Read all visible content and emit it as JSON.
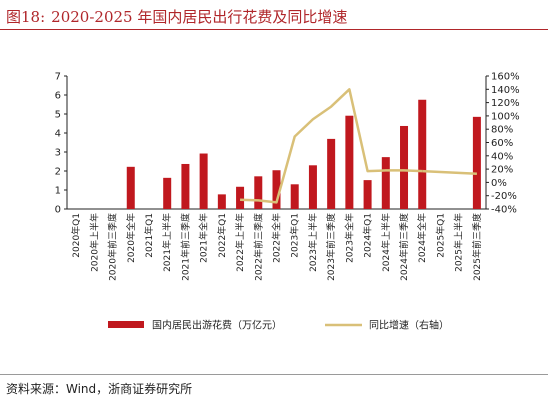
{
  "header": {
    "figure_label": "图18:",
    "title": "2020-2025 年国内居民出行花费及同比增速"
  },
  "source": "资料来源：Wind，浙商证券研究所",
  "chart_data": {
    "type": "bar",
    "categories": [
      "2020年Q1",
      "2020年上半年",
      "2020年前三季度",
      "2020年全年",
      "2021年Q1",
      "2021年上半年",
      "2021年前三季度",
      "2021年全年",
      "2022年Q1",
      "2022年上半年",
      "2022年前三季度",
      "2022年全年",
      "2023年Q1",
      "2023年上半年",
      "2023年前三季度",
      "2023年全年",
      "2024年Q1",
      "2024年上半年",
      "2024年前三季度",
      "2024年全年",
      "2025年Q1",
      "2025年上半年",
      "2025年前三季度"
    ],
    "series": [
      {
        "name": "国内居民出游花费（万亿元）",
        "type": "bar",
        "axis": "left",
        "color": "#c0181e",
        "values": [
          null,
          null,
          null,
          2.22,
          null,
          1.64,
          2.37,
          2.92,
          0.77,
          1.17,
          1.72,
          2.04,
          1.3,
          2.3,
          3.69,
          4.91,
          1.52,
          2.73,
          4.37,
          5.75,
          null,
          null,
          4.85
        ]
      },
      {
        "name": "同比增速（右轴）",
        "type": "line",
        "axis": "right",
        "color": "#d9c078",
        "values": [
          null,
          null,
          null,
          null,
          null,
          null,
          null,
          null,
          null,
          -26,
          -27,
          -30,
          69,
          95,
          114,
          140,
          17,
          18,
          18,
          17,
          null,
          null,
          13
        ]
      }
    ],
    "y_left": {
      "ylim": [
        0,
        7
      ],
      "ticks": [
        "0",
        "1",
        "2",
        "3",
        "4",
        "5",
        "6",
        "7"
      ]
    },
    "y_right": {
      "ylim": [
        -40,
        160
      ],
      "ticks": [
        "-40%",
        "-20%",
        "0%",
        "20%",
        "40%",
        "60%",
        "80%",
        "100%",
        "120%",
        "140%",
        "160%"
      ]
    },
    "grid": false,
    "legend_position": "bottom"
  }
}
